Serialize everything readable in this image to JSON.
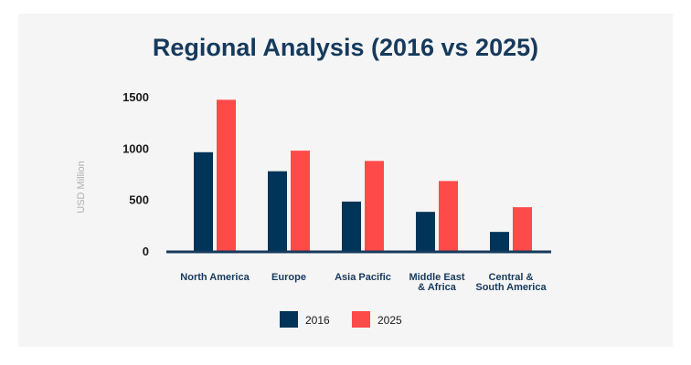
{
  "chart_data": {
    "type": "bar",
    "title": "Regional Analysis (2016 vs 2025)",
    "xlabel": "",
    "ylabel": "USD Million",
    "categories": [
      [
        "North America"
      ],
      [
        "Europe"
      ],
      [
        "Asia Pacific"
      ],
      [
        "Middle East",
        "& Africa"
      ],
      [
        "Central &",
        "South America"
      ]
    ],
    "series": [
      {
        "name": "2016",
        "color": "#003459",
        "values": [
          960,
          775,
          480,
          380,
          185
        ]
      },
      {
        "name": "2025",
        "color": "#ff4a4a",
        "values": [
          1470,
          975,
          875,
          680,
          425
        ]
      }
    ],
    "yticks": [
      0,
      500,
      1000,
      1500
    ],
    "ylim": [
      0,
      1600
    ],
    "grid": false,
    "legend_position": "bottom-center"
  }
}
